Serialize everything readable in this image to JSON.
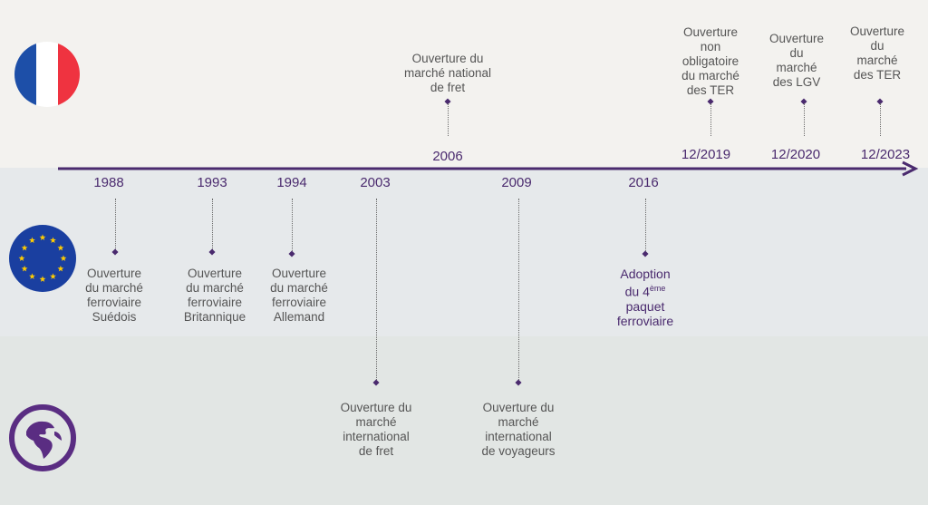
{
  "colors": {
    "accent": "#4a2a6e",
    "france_blue": "#1d4fa8",
    "france_red": "#ef3340",
    "eu_blue": "#1a3fa0",
    "eu_star": "#ffcc00",
    "world_purple": "#5a2d82"
  },
  "rows": [
    {
      "name": "france",
      "icon": "france-flag-icon"
    },
    {
      "name": "europe",
      "icon": "eu-flag-icon"
    },
    {
      "name": "world",
      "icon": "globe-icon"
    }
  ],
  "events": [
    {
      "id": "1988",
      "year": "1988",
      "row": "europe",
      "label": [
        "Ouverture",
        "du marché",
        "ferroviaire",
        "Suédois"
      ]
    },
    {
      "id": "1993",
      "year": "1993",
      "row": "europe",
      "label": [
        "Ouverture",
        "du marché",
        "ferroviaire",
        "Britannique"
      ]
    },
    {
      "id": "1994",
      "year": "1994",
      "row": "europe",
      "label": [
        "Ouverture",
        "du marché",
        "ferroviaire",
        "Allemand"
      ]
    },
    {
      "id": "2003",
      "year": "2003",
      "row": "world",
      "label": [
        "Ouverture du",
        "marché",
        "international",
        "de fret"
      ]
    },
    {
      "id": "2006",
      "year": "2006",
      "row": "france",
      "label": [
        "Ouverture du",
        "marché national",
        "de fret"
      ]
    },
    {
      "id": "2009",
      "year": "2009",
      "row": "world",
      "label": [
        "Ouverture du",
        "marché",
        "international",
        "de voyageurs"
      ]
    },
    {
      "id": "2016",
      "year": "2016",
      "row": "europe",
      "label": [
        "Adoption",
        "du 4ème",
        "paquet",
        "ferroviaire"
      ],
      "label_sup_base": "du 4",
      "label_sup": "ème"
    },
    {
      "id": "2019",
      "year": "12/2019",
      "row": "france",
      "label": [
        "Ouverture",
        "non",
        "obligatoire",
        "du marché",
        "des TER"
      ]
    },
    {
      "id": "2020",
      "year": "12/2020",
      "row": "france",
      "label": [
        "Ouverture",
        "du",
        "marché",
        "des LGV"
      ]
    },
    {
      "id": "2023",
      "year": "12/2023",
      "row": "france",
      "label": [
        "Ouverture",
        "du",
        "marché",
        "des TER"
      ]
    }
  ]
}
